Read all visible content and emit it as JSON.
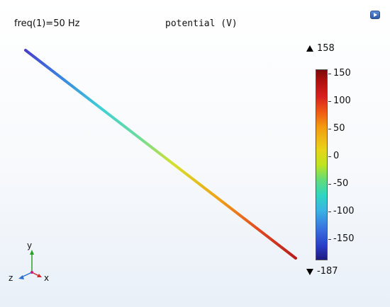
{
  "plot": {
    "freq_label": "freq(1)=50 Hz",
    "title": "potential (V)",
    "max_label": "158",
    "min_label": "-187"
  },
  "colorbar": {
    "ticks": [
      "150",
      "100",
      "50",
      "0",
      "-50",
      "-100",
      "-150"
    ]
  },
  "axes": {
    "y": "y",
    "z": "z",
    "x": "x"
  },
  "colors": {
    "wire_start": "#3b4fd6",
    "wire_mid": "#d7e01e",
    "wire_end": "#c0281e",
    "axis_y": "#28a028",
    "axis_z": "#2a6fd6",
    "axis_x": "#d22a2a"
  },
  "icons": {
    "corner": "view-window-icon"
  }
}
